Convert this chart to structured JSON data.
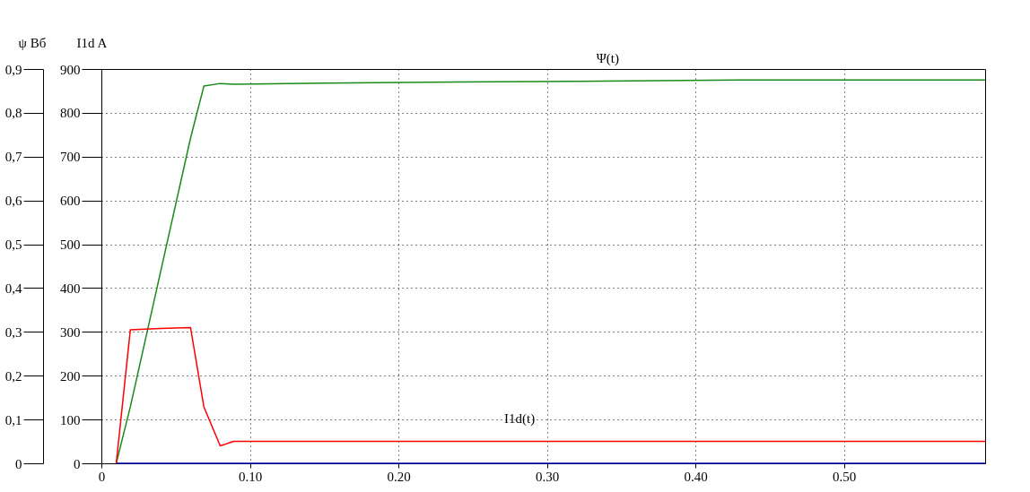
{
  "chart_data": {
    "type": "line",
    "ylabel": "ψ Вб",
    "y3label": "I1d A",
    "xlim": [
      0,
      0.595
    ],
    "xticks": [
      0,
      {
        "value": 0.1,
        "label": "0.10"
      },
      {
        "value": 0.2,
        "label": "0.20"
      },
      {
        "value": 0.3,
        "label": "0.30"
      },
      {
        "value": 0.4,
        "label": "0.40"
      },
      {
        "value": 0.5,
        "label": "0.50"
      }
    ],
    "ylim": [
      0,
      0.9
    ],
    "yticks": [
      0,
      {
        "value": 0.1,
        "label": "0,1"
      },
      {
        "value": 0.2,
        "label": "0,2"
      },
      {
        "value": 0.3,
        "label": "0,3"
      },
      {
        "value": 0.4,
        "label": "0,4"
      },
      {
        "value": 0.5,
        "label": "0,5"
      },
      {
        "value": 0.6,
        "label": "0,6"
      },
      {
        "value": 0.7,
        "label": "0,7"
      },
      {
        "value": 0.8,
        "label": "0,8"
      },
      {
        "value": 0.9,
        "label": "0,9"
      }
    ],
    "y3lim": [
      0,
      900
    ],
    "y3ticks": [
      0,
      100,
      200,
      300,
      400,
      500,
      600,
      700,
      800,
      900
    ],
    "grid": true,
    "line_style": "solid",
    "marker": "none",
    "series": [
      {
        "color": "#1a8a1a",
        "x": [
          0.01,
          0.0195,
          0.06,
          0.069,
          0.08,
          0.09,
          0.15,
          0.22,
          0.32,
          0.43,
          0.595
        ],
        "values": [
          0,
          0.129,
          0.742,
          0.861,
          0.867,
          0.865,
          0.868,
          0.87,
          0.872,
          0.875,
          0.875
        ]
      },
      {
        "color": "#ff0000",
        "axis": "y3",
        "x": [
          0.01,
          0.0195,
          0.04,
          0.06,
          0.069,
          0.08,
          0.089,
          0.595
        ],
        "values": [
          0,
          305,
          308,
          310,
          129,
          40,
          50,
          50
        ]
      },
      {
        "color": "#0000aa",
        "x": [
          0.01,
          0.595
        ],
        "values": [
          0,
          0
        ]
      }
    ],
    "annotations": [
      {
        "text": "Ψ(t)",
        "x": 0.32,
        "y": 0.872
      },
      {
        "text": "I1d(t)",
        "x": 0.258,
        "y": 0.05
      }
    ]
  }
}
